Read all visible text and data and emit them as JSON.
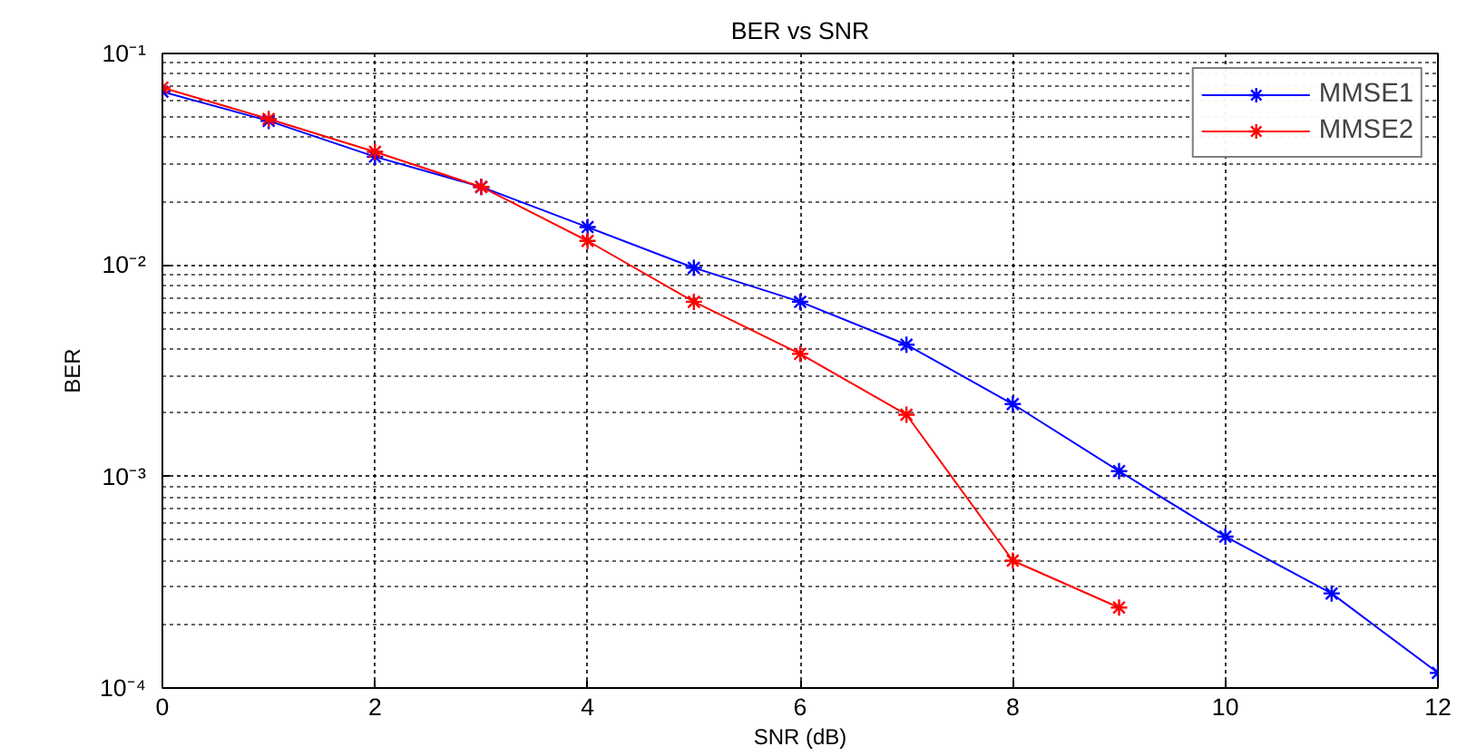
{
  "chart_data": {
    "type": "line",
    "title": "BER vs SNR",
    "xlabel": "SNR (dB)",
    "ylabel": "BER",
    "x": [
      0,
      1,
      2,
      3,
      4,
      5,
      6,
      7,
      8,
      9,
      10,
      11,
      12
    ],
    "series": [
      {
        "name": "MMSE1",
        "color": "#0000ff",
        "values": [
          0.066,
          0.048,
          0.0325,
          0.0234,
          0.0151,
          0.0097,
          0.0067,
          0.0042,
          0.0022,
          0.00106,
          0.00052,
          0.00028,
          0.000118
        ]
      },
      {
        "name": "MMSE2",
        "color": "#ff0000",
        "values": [
          0.069,
          0.049,
          0.0343,
          0.0234,
          0.013,
          0.0067,
          0.0038,
          0.00196,
          0.0004,
          0.00024,
          null,
          null,
          null
        ]
      }
    ],
    "log": "y",
    "xlim": [
      0,
      12
    ],
    "ylim": [
      0.0001,
      0.1
    ],
    "xticks": [
      0,
      2,
      4,
      6,
      8,
      10,
      12
    ],
    "yticks": [
      {
        "value": 0.0001,
        "label": "10⁻⁴"
      },
      {
        "value": 0.001,
        "label": "10⁻³"
      },
      {
        "value": 0.01,
        "label": "10⁻²"
      },
      {
        "value": 0.1,
        "label": "10⁻¹"
      }
    ],
    "grid": true,
    "legend": "top right",
    "marker": "cross",
    "line_style": "solid"
  }
}
